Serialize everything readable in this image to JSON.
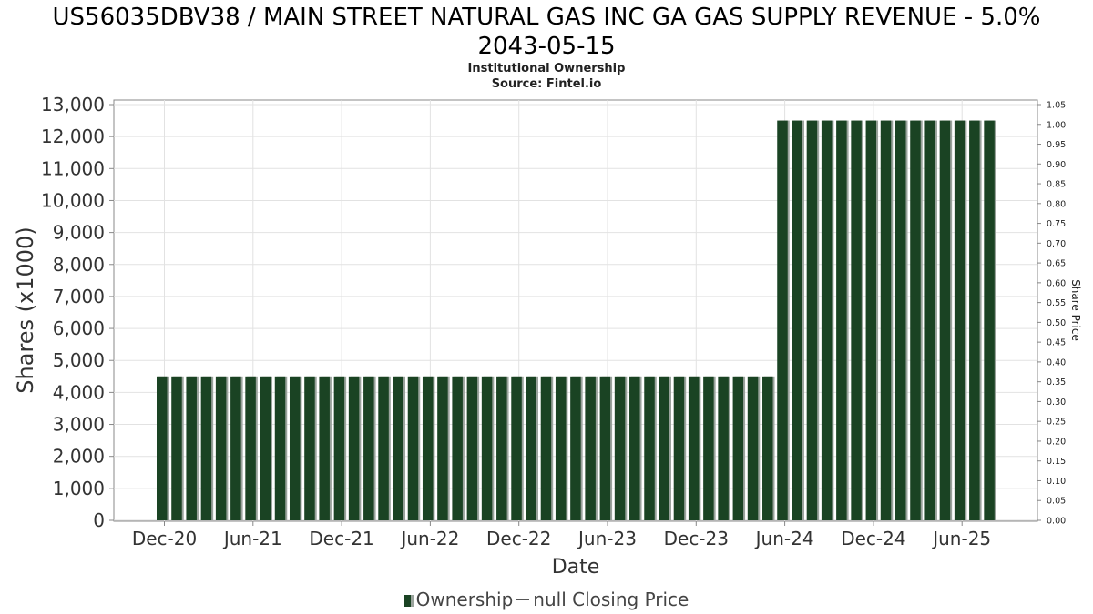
{
  "header": {
    "title_line1": "US56035DBV38 / MAIN STREET NATURAL GAS INC GA GAS SUPPLY REVENUE - 5.0%",
    "title_line2": "2043-05-15",
    "subtitle1": "Institutional Ownership",
    "subtitle2": "Source: Fintel.io"
  },
  "legend": {
    "ownership": "Ownership",
    "price": "null Closing Price"
  },
  "chart_data": {
    "type": "bar",
    "title": "US56035DBV38 / MAIN STREET NATURAL GAS INC GA GAS SUPPLY REVENUE - 5.0% 2043-05-15",
    "subtitle": "Institutional Ownership\nSource: Fintel.io",
    "xlabel": "Date",
    "ylabel": "Shares (x1000)",
    "y2label": "Share Price",
    "ylim": [
      0,
      13000
    ],
    "y2lim": [
      0,
      1.05
    ],
    "yticks": [
      "0",
      "1,000",
      "2,000",
      "3,000",
      "4,000",
      "5,000",
      "6,000",
      "7,000",
      "8,000",
      "9,000",
      "10,000",
      "11,000",
      "12,000",
      "13,000"
    ],
    "y2ticks": [
      "0.00",
      "0.05",
      "0.10",
      "0.15",
      "0.20",
      "0.25",
      "0.30",
      "0.35",
      "0.40",
      "0.45",
      "0.50",
      "0.55",
      "0.60",
      "0.65",
      "0.70",
      "0.75",
      "0.80",
      "0.85",
      "0.90",
      "0.95",
      "1.00",
      "1.05"
    ],
    "xticks": [
      "Dec-20",
      "Jun-21",
      "Dec-21",
      "Jun-22",
      "Dec-22",
      "Jun-23",
      "Dec-23",
      "Jun-24",
      "Dec-24",
      "Jun-25"
    ],
    "grid": true,
    "legend_position": "bottom",
    "colors": {
      "bar": "#1a4323",
      "bar_shadow": "#9aa39c",
      "grid": "#e2e2e2"
    },
    "series": [
      {
        "name": "Ownership",
        "values": [
          4500,
          4500,
          4500,
          4500,
          4500,
          4500,
          4500,
          4500,
          4500,
          4500,
          4500,
          4500,
          4500,
          4500,
          4500,
          4500,
          4500,
          4500,
          4500,
          4500,
          4500,
          4500,
          4500,
          4500,
          4500,
          4500,
          4500,
          4500,
          4500,
          4500,
          4500,
          4500,
          4500,
          4500,
          4500,
          4500,
          4500,
          4500,
          4500,
          4500,
          4500,
          4500,
          12500,
          12500,
          12500,
          12500,
          12500,
          12500,
          12500,
          12500,
          12500,
          12500,
          12500,
          12500,
          12500,
          12500,
          12500
        ]
      }
    ]
  }
}
